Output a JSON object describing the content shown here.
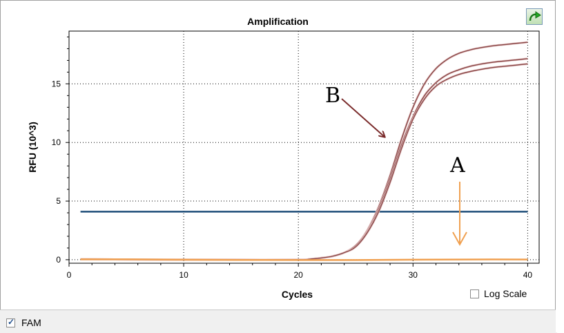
{
  "chart_data": {
    "type": "line",
    "title": "Amplification",
    "xlabel": "Cycles",
    "ylabel": "RFU (10^3)",
    "xlim": [
      0,
      41
    ],
    "ylim": [
      -0.3,
      19.5
    ],
    "xticks": [
      0,
      10,
      20,
      30,
      40
    ],
    "yticks": [
      0,
      5,
      10,
      15
    ],
    "grid": "dotted",
    "threshold": {
      "value": 4.1,
      "color": "#1f4e79"
    },
    "series": [
      {
        "color": "#8b4a4a",
        "x": [
          1,
          5,
          10,
          15,
          20,
          21,
          22,
          23,
          24,
          25,
          26,
          27,
          28,
          29,
          30,
          31,
          32,
          33,
          34,
          35,
          36,
          37,
          38,
          39,
          40
        ],
        "y": [
          0.05,
          0.02,
          0.0,
          0.0,
          0.0,
          0.05,
          0.15,
          0.3,
          0.6,
          1.2,
          2.5,
          4.5,
          7.2,
          10.3,
          13.0,
          15.0,
          16.3,
          17.1,
          17.6,
          17.9,
          18.1,
          18.25,
          18.35,
          18.45,
          18.55
        ]
      },
      {
        "color": "#8b4a4a",
        "x": [
          1,
          5,
          10,
          15,
          20,
          21,
          22,
          23,
          24,
          25,
          26,
          27,
          28,
          29,
          30,
          31,
          32,
          33,
          34,
          35,
          36,
          37,
          38,
          39,
          40
        ],
        "y": [
          0.05,
          0.02,
          0.0,
          0.0,
          0.0,
          0.05,
          0.15,
          0.3,
          0.6,
          1.2,
          2.4,
          4.3,
          6.9,
          9.8,
          12.2,
          14.0,
          15.1,
          15.8,
          16.2,
          16.5,
          16.7,
          16.85,
          16.95,
          17.05,
          17.15
        ]
      },
      {
        "color": "#8b4a4a",
        "x": [
          1,
          5,
          10,
          15,
          20,
          21,
          22,
          23,
          24,
          25,
          26,
          27,
          28,
          29,
          30,
          31,
          32,
          33,
          34,
          35,
          36,
          37,
          38,
          39,
          40
        ],
        "y": [
          0.05,
          0.02,
          0.0,
          0.0,
          0.0,
          0.05,
          0.15,
          0.3,
          0.6,
          1.1,
          2.3,
          4.1,
          6.6,
          9.5,
          12.0,
          13.7,
          14.8,
          15.4,
          15.8,
          16.05,
          16.25,
          16.4,
          16.5,
          16.6,
          16.7
        ]
      },
      {
        "color": "#f0a050",
        "x": [
          1,
          5,
          10,
          15,
          20,
          25,
          30,
          35,
          40
        ],
        "y": [
          0.03,
          0.03,
          0.0,
          -0.02,
          -0.03,
          -0.03,
          0.0,
          0.02,
          0.02
        ]
      }
    ],
    "annotations": [
      {
        "text": "B",
        "color": "#7a2b2b"
      },
      {
        "text": "A",
        "color": "#f0a050"
      }
    ]
  },
  "controls": {
    "log_scale_label": "Log Scale",
    "log_scale_checked": false,
    "fam_label": "FAM",
    "fam_checked": true
  },
  "icons": {
    "export": "export-arrow-icon"
  }
}
